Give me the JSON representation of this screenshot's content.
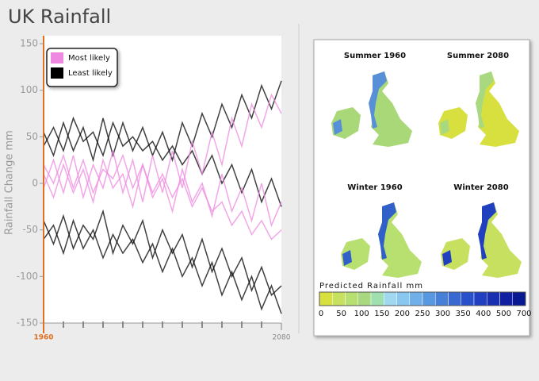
{
  "chart_data": {
    "type": "line",
    "title": "UK Rainfall",
    "y_label": "Rainfall Change mm",
    "x": [
      1960,
      1965,
      1970,
      1975,
      1980,
      1985,
      1990,
      1995,
      2000,
      2005,
      2010,
      2015,
      2020,
      2025,
      2030,
      2035,
      2040,
      2045,
      2050,
      2055,
      2060,
      2065,
      2070,
      2075,
      2080
    ],
    "xlim": [
      1960,
      2080
    ],
    "xticks": [
      1960,
      2080
    ],
    "minor_xticks": [
      1970,
      1980,
      1990,
      2000,
      2010,
      2020,
      2030,
      2040,
      2050,
      2060,
      2070
    ],
    "ylim": [
      -150,
      150
    ],
    "yticks": [
      -150,
      -100,
      -50,
      0,
      50,
      100,
      150
    ],
    "legend": "top-left",
    "series": [
      {
        "name": "Most likely",
        "color": "#ee88e0",
        "values": [
          [
            10,
            -15,
            20,
            -10,
            15,
            -20,
            25,
            -5,
            10,
            -25,
            20,
            -15,
            5,
            -30,
            15,
            -20,
            0,
            -35,
            10,
            -30,
            -5,
            -40,
            0,
            -45,
            -20
          ],
          [
            -5,
            25,
            -10,
            30,
            -15,
            20,
            -5,
            35,
            -10,
            25,
            -20,
            30,
            -10,
            35,
            -5,
            45,
            10,
            55,
            20,
            70,
            40,
            85,
            60,
            95,
            75
          ],
          [
            20,
            0,
            30,
            -5,
            25,
            -10,
            15,
            5,
            30,
            -5,
            20,
            -10,
            10,
            -15,
            5,
            -25,
            -5,
            -30,
            -20,
            -45,
            -30,
            -55,
            -40,
            -60,
            -50
          ]
        ]
      },
      {
        "name": "Least likely",
        "color": "#000000",
        "values": [
          [
            55,
            30,
            65,
            35,
            60,
            25,
            70,
            30,
            65,
            35,
            60,
            30,
            55,
            25,
            65,
            40,
            75,
            50,
            85,
            60,
            95,
            70,
            105,
            80,
            110
          ],
          [
            -40,
            -65,
            -35,
            -70,
            -45,
            -60,
            -30,
            -75,
            -45,
            -65,
            -40,
            -80,
            -50,
            -75,
            -55,
            -90,
            -60,
            -95,
            -70,
            -100,
            -80,
            -115,
            -90,
            -120,
            -110
          ],
          [
            40,
            60,
            35,
            70,
            45,
            55,
            30,
            65,
            40,
            50,
            35,
            45,
            25,
            40,
            20,
            35,
            10,
            30,
            0,
            20,
            -10,
            15,
            -20,
            5,
            -25
          ],
          [
            -60,
            -45,
            -75,
            -40,
            -70,
            -50,
            -80,
            -55,
            -75,
            -60,
            -85,
            -65,
            -95,
            -70,
            -100,
            -80,
            -110,
            -85,
            -120,
            -95,
            -125,
            -100,
            -135,
            -110,
            -140
          ]
        ]
      }
    ]
  },
  "maps": {
    "panels": [
      {
        "title": "Summer 1960"
      },
      {
        "title": "Summer 2080"
      },
      {
        "title": "Winter 1960"
      },
      {
        "title": "Winter 2080"
      }
    ],
    "colorbar": {
      "title": "Predicted Rainfall mm",
      "labels": [
        0,
        50,
        100,
        150,
        200,
        250,
        300,
        350,
        400,
        500,
        700
      ],
      "colors": [
        "#d8e040",
        "#c8e060",
        "#b8e070",
        "#a8d880",
        "#a0e0b0",
        "#a0d8f0",
        "#88c8f0",
        "#70b0e8",
        "#5898e0",
        "#4880d8",
        "#3868d0",
        "#2850c8",
        "#2040c0",
        "#1830b0",
        "#1020a0",
        "#081890"
      ]
    }
  }
}
